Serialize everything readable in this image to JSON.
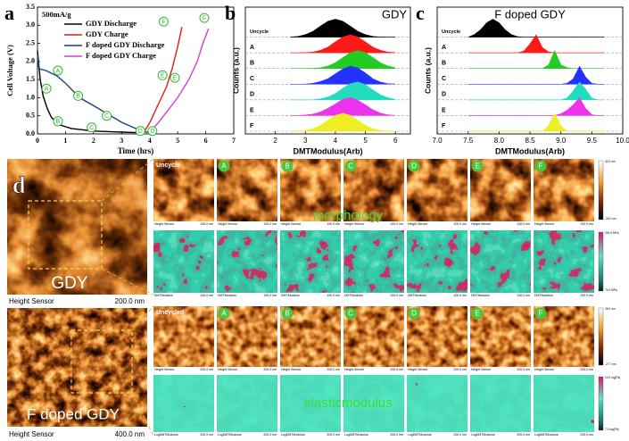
{
  "chart_data": [
    {
      "type": "line",
      "panel_label": "a",
      "subtitle": "500mA/g",
      "xlabel": "Time (hrs)",
      "ylabel": "Cell Voltage (V)",
      "xlim": [
        0,
        7
      ],
      "xticks": [
        0,
        1,
        2,
        3,
        4,
        5,
        6,
        7
      ],
      "ylim": [
        0,
        3.5
      ],
      "yticks": [
        {
          "value": 0,
          "label": "0.0"
        },
        {
          "value": 0.5,
          "label": "0.5"
        },
        {
          "value": 1,
          "label": "1.0"
        },
        {
          "value": 1.5,
          "label": "1.5"
        },
        {
          "value": 2,
          "label": "2.0"
        },
        {
          "value": 2.5,
          "label": "2.5"
        },
        {
          "value": 3,
          "label": "3.0"
        },
        {
          "value": 3.5,
          "label": "3.5"
        }
      ],
      "legend": "top",
      "series": [
        {
          "name": "GDY Discharge",
          "color": "#000000",
          "x": [
            0,
            0.1,
            0.2,
            0.35,
            0.5,
            0.8,
            1.2,
            2,
            3,
            3.8
          ],
          "values": [
            2.3,
            1.5,
            1.05,
            0.7,
            0.45,
            0.25,
            0.15,
            0.08,
            0.05,
            0.03
          ]
        },
        {
          "name": "GDY Charge",
          "color": "#e41a1c",
          "x": [
            3.8,
            4,
            4.3,
            4.6,
            4.8,
            5,
            5.15
          ],
          "values": [
            0.05,
            0.3,
            0.8,
            1.3,
            1.8,
            2.4,
            2.95
          ]
        },
        {
          "name": "F doped GDY Discharge",
          "color": "#1f3f7a",
          "x": [
            0,
            0.05,
            0.3,
            0.7,
            1,
            1.5,
            2,
            2.5,
            3,
            3.5,
            3.8,
            4
          ],
          "values": [
            2.2,
            1.8,
            1.75,
            1.6,
            1.4,
            1,
            0.78,
            0.55,
            0.32,
            0.15,
            0.07,
            0.03
          ]
        },
        {
          "name": "F doped GDY Charge",
          "color": "#d63bd6",
          "x": [
            4,
            4.3,
            4.6,
            5,
            5.4,
            5.7,
            5.9,
            6.1
          ],
          "values": [
            0.05,
            0.3,
            0.6,
            1,
            1.5,
            2,
            2.5,
            2.9
          ]
        }
      ],
      "annotations": [
        {
          "text": "A",
          "x": 0.73,
          "y": 1.75
        },
        {
          "text": "B",
          "x": 1.45,
          "y": 1.05
        },
        {
          "text": "C",
          "x": 2.47,
          "y": 0.5
        },
        {
          "text": "D",
          "x": 3.67,
          "y": 0.08
        },
        {
          "text": "A",
          "x": 0.32,
          "y": 1.25
        },
        {
          "text": "B",
          "x": 0.73,
          "y": 0.35
        },
        {
          "text": "C",
          "x": 1.93,
          "y": 0.18
        },
        {
          "text": "D",
          "x": 4.1,
          "y": 0.08
        },
        {
          "text": "E",
          "x": 4.46,
          "y": 1.62
        },
        {
          "text": "E",
          "x": 4.9,
          "y": 1.55
        },
        {
          "text": "F",
          "x": 4.5,
          "y": 3.1
        },
        {
          "text": "F",
          "x": 5.95,
          "y": 3.2
        }
      ]
    },
    {
      "type": "ridge",
      "panel_label": "b",
      "title": "GDY",
      "xlabel": "DMTModulus(Arb)",
      "ylabel": "Counts (a.u.)",
      "xlim": [
        1,
        6.5
      ],
      "xticks": [
        2,
        3,
        4,
        5,
        6
      ],
      "x": [
        2.5,
        2.75,
        3,
        3.25,
        3.5,
        3.75,
        4,
        4.25,
        4.5,
        4.75,
        5,
        5.25,
        5.5,
        5.75,
        6
      ],
      "series": [
        {
          "name": "Uncycle",
          "color": "#000000",
          "values": [
            0.01,
            0.04,
            0.14,
            0.32,
            0.61,
            0.88,
            1,
            0.88,
            0.61,
            0.32,
            0.14,
            0.04,
            0.01,
            0,
            0
          ]
        },
        {
          "name": "A",
          "color": "#ff1a1a",
          "values": [
            0,
            0,
            0.01,
            0.04,
            0.14,
            0.32,
            0.61,
            0.88,
            1,
            0.88,
            0.61,
            0.32,
            0.14,
            0.04,
            0.01
          ]
        },
        {
          "name": "B",
          "color": "#22cc22",
          "values": [
            0,
            0,
            0,
            0.01,
            0.04,
            0.14,
            0.32,
            0.61,
            0.88,
            1,
            0.88,
            0.61,
            0.32,
            0.14,
            0.04
          ]
        },
        {
          "name": "C",
          "color": "#2233ff",
          "values": [
            0,
            0,
            0.01,
            0.05,
            0.15,
            0.3,
            0.58,
            0.85,
            1,
            0.9,
            0.63,
            0.3,
            0.12,
            0.03,
            0.01
          ]
        },
        {
          "name": "D",
          "color": "#22ddbb",
          "values": [
            0,
            0,
            0,
            0.01,
            0.05,
            0.16,
            0.35,
            0.65,
            0.9,
            1,
            0.85,
            0.55,
            0.28,
            0.12,
            0.03
          ]
        },
        {
          "name": "E",
          "color": "#ee33ee",
          "values": [
            0,
            0.01,
            0.03,
            0.08,
            0.2,
            0.4,
            0.65,
            0.9,
            1,
            0.85,
            0.6,
            0.32,
            0.14,
            0.04,
            0.01
          ]
        },
        {
          "name": "F",
          "color": "#eeee22",
          "values": [
            0,
            0.01,
            0.04,
            0.14,
            0.32,
            0.61,
            0.88,
            1,
            0.88,
            0.61,
            0.32,
            0.14,
            0.04,
            0.01,
            0
          ]
        }
      ]
    },
    {
      "type": "ridge",
      "panel_label": "c",
      "title": "F doped GDY",
      "xlabel": "DMTModulus(Arb)",
      "ylabel": "Counts (a.u.)",
      "xlim": [
        7,
        10
      ],
      "xticks": [
        {
          "value": 7,
          "label": "7.0"
        },
        {
          "value": 7.5,
          "label": "7.5"
        },
        {
          "value": 8,
          "label": "8.0"
        },
        {
          "value": 8.5,
          "label": "8.5"
        },
        {
          "value": 9,
          "label": "9.0"
        },
        {
          "value": 9.5,
          "label": "9.5"
        },
        {
          "value": 10,
          "label": "10.0"
        }
      ],
      "x": [
        7.5,
        7.6,
        7.7,
        7.8,
        7.9,
        8.0,
        8.1,
        8.2,
        8.3,
        8.4,
        8.5,
        8.6,
        8.7,
        8.8,
        8.9,
        9.0,
        9.1,
        9.2,
        9.3,
        9.4,
        9.5,
        9.6,
        9.7
      ],
      "series": [
        {
          "name": "Uncycle",
          "color": "#000000",
          "values": [
            0,
            0.14,
            0.41,
            0.8,
            1,
            0.8,
            0.41,
            0.14,
            0.03,
            0,
            0,
            0,
            0,
            0,
            0,
            0,
            0,
            0,
            0,
            0,
            0,
            0,
            0
          ]
        },
        {
          "name": "A",
          "color": "#ff1a1a",
          "values": [
            0,
            0,
            0,
            0,
            0,
            0,
            0,
            0,
            0,
            0.1,
            0.5,
            1,
            0.3,
            0.05,
            0,
            0,
            0,
            0,
            0,
            0,
            0,
            0,
            0
          ]
        },
        {
          "name": "B",
          "color": "#22cc22",
          "values": [
            0,
            0,
            0,
            0,
            0,
            0,
            0,
            0,
            0,
            0,
            0,
            0,
            0,
            0.2,
            1,
            0.2,
            0.05,
            0,
            0,
            0,
            0,
            0,
            0
          ]
        },
        {
          "name": "C",
          "color": "#2233ff",
          "values": [
            0,
            0,
            0,
            0,
            0,
            0,
            0,
            0,
            0,
            0,
            0,
            0,
            0,
            0,
            0,
            0,
            0.05,
            0.3,
            1,
            0.4,
            0.05,
            0,
            0
          ]
        },
        {
          "name": "D",
          "color": "#22ddbb",
          "values": [
            0,
            0,
            0,
            0,
            0,
            0,
            0,
            0,
            0,
            0,
            0,
            0,
            0,
            0,
            0,
            0,
            0.1,
            0.5,
            1,
            0.6,
            0.1,
            0,
            0
          ]
        },
        {
          "name": "E",
          "color": "#ee33ee",
          "values": [
            0,
            0,
            0,
            0,
            0,
            0,
            0,
            0,
            0,
            0,
            0,
            0,
            0,
            0,
            0,
            0.1,
            0.3,
            0.6,
            1,
            0.4,
            0.05,
            0,
            0
          ]
        },
        {
          "name": "F",
          "color": "#eeee22",
          "values": [
            0,
            0,
            0,
            0,
            0,
            0,
            0,
            0,
            0,
            0,
            0,
            0,
            0,
            0.3,
            1,
            0.3,
            0,
            0,
            0,
            0,
            0,
            0,
            0
          ]
        }
      ]
    }
  ],
  "panel_d": {
    "label": "d",
    "overview": [
      {
        "name": "GDY",
        "scale": "200.0 nm",
        "sensor": "Height Sensor"
      },
      {
        "name": "F doped GDY",
        "scale": "400.0 nm",
        "sensor": "Height Sensor"
      }
    ],
    "grids": [
      {
        "columns": [
          "Uncycle",
          "A",
          "B",
          "C",
          "D",
          "E",
          "F"
        ],
        "overlay": "morphology",
        "row_captions": [
          [
            "Height Sensor",
            "100.0 nm"
          ],
          [
            "DMTModulus",
            "100.0 nm"
          ]
        ],
        "colorbars": [
          [
            "40.0 nm",
            "-30.0 nm"
          ],
          [
            "200.0 MPa",
            "70.0 MPa"
          ]
        ]
      },
      {
        "columns": [
          "Uncycled",
          "A",
          "B",
          "C",
          "D",
          "E",
          "F"
        ],
        "overlay": "elasticmodulus",
        "row_captions": [
          [
            "Height Sensor",
            "200.0 nm"
          ],
          [
            "LogDMTModulus",
            "200.0 nm"
          ]
        ],
        "colorbars": [
          [
            "28.0 nm",
            "-27.7 nm"
          ],
          [
            "10.0 log(Pa)",
            "7.0 log(Pa)"
          ]
        ]
      }
    ]
  }
}
